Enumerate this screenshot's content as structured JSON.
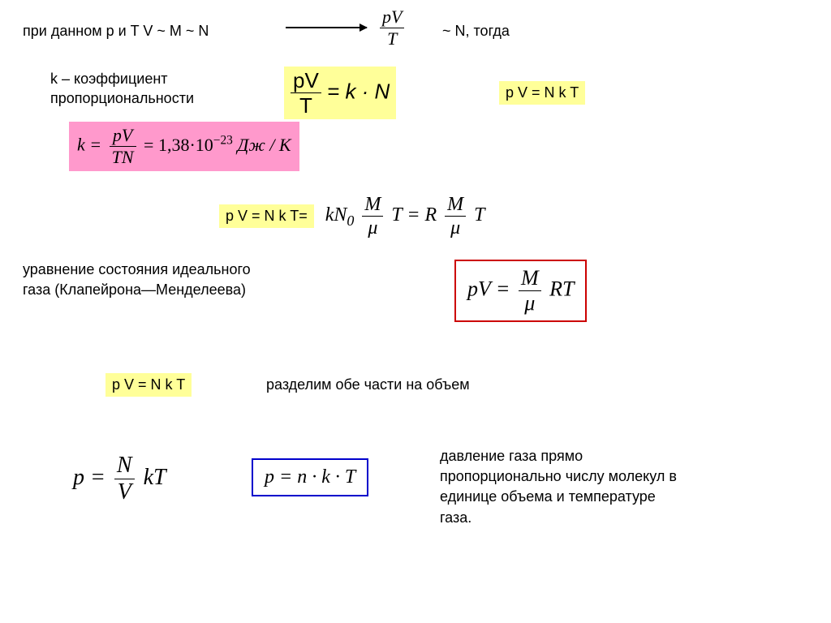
{
  "line1": {
    "text_a": "при данном p  и T    V ~ M ~ N",
    "pv_over_t_num": "pV",
    "pv_over_t_den": "T",
    "text_b": "~ N, тогда",
    "fontsize": 18
  },
  "kcoef": {
    "text": "k – коэффициент пропорциональности",
    "fontsize": 18
  },
  "eq1": {
    "num": "pV",
    "den": "T",
    "rhs": "= k · N",
    "bg": "#ffff99",
    "fontsize": 26
  },
  "eq2": {
    "text": "p V = N k T",
    "bg": "#ffff99",
    "fontsize": 18
  },
  "eq3": {
    "lhs_k": "k =",
    "num": "pV",
    "den": "TN",
    "rhs_eq": "= 1,38·10",
    "rhs_exp": "−23",
    "rhs_unit": " Дж / К",
    "bg": "#ff99cc",
    "fontsize": 22
  },
  "eq4": {
    "prefix": "p V = N k T=",
    "prefix_bg": "#ffff99",
    "kN0": "kN",
    "sub0": "0",
    "frac1_num": "M",
    "frac1_den": "μ",
    "T": "T",
    "eq": " = R",
    "frac2_num": "M",
    "frac2_den": "μ",
    "T2": "T",
    "fontsize": 24
  },
  "eq_state_label": {
    "l1": "уравнение состояния    идеального",
    "l2": "газа   (Клапейрона—Менделеева)",
    "fontsize": 18
  },
  "eq5": {
    "lhs": "pV =",
    "num": "M",
    "den": "μ",
    "rhs": "RT",
    "border": "#cc0000",
    "fontsize": 26
  },
  "eq6": {
    "text": "p V = N k T",
    "bg": "#ffff99",
    "note": "разделим обе части на объем",
    "fontsize": 18
  },
  "eq7": {
    "lhs": "p =",
    "num": "N",
    "den": "V",
    "rhs": "kT",
    "fontsize": 28
  },
  "eq8": {
    "text": "p = n · k · T",
    "border": "#0000cc",
    "fontsize": 24
  },
  "pressure_note": {
    "l1": "давление газа прямо",
    "l2": "пропорционально числу молекул в",
    "l3": "единице объема и температуре",
    "l4": "газа.",
    "fontsize": 18
  },
  "colors": {
    "bg": "#ffffff",
    "text": "#000000",
    "yellow": "#ffff99",
    "pink": "#ff99cc",
    "red": "#cc0000",
    "blue": "#0000cc"
  }
}
